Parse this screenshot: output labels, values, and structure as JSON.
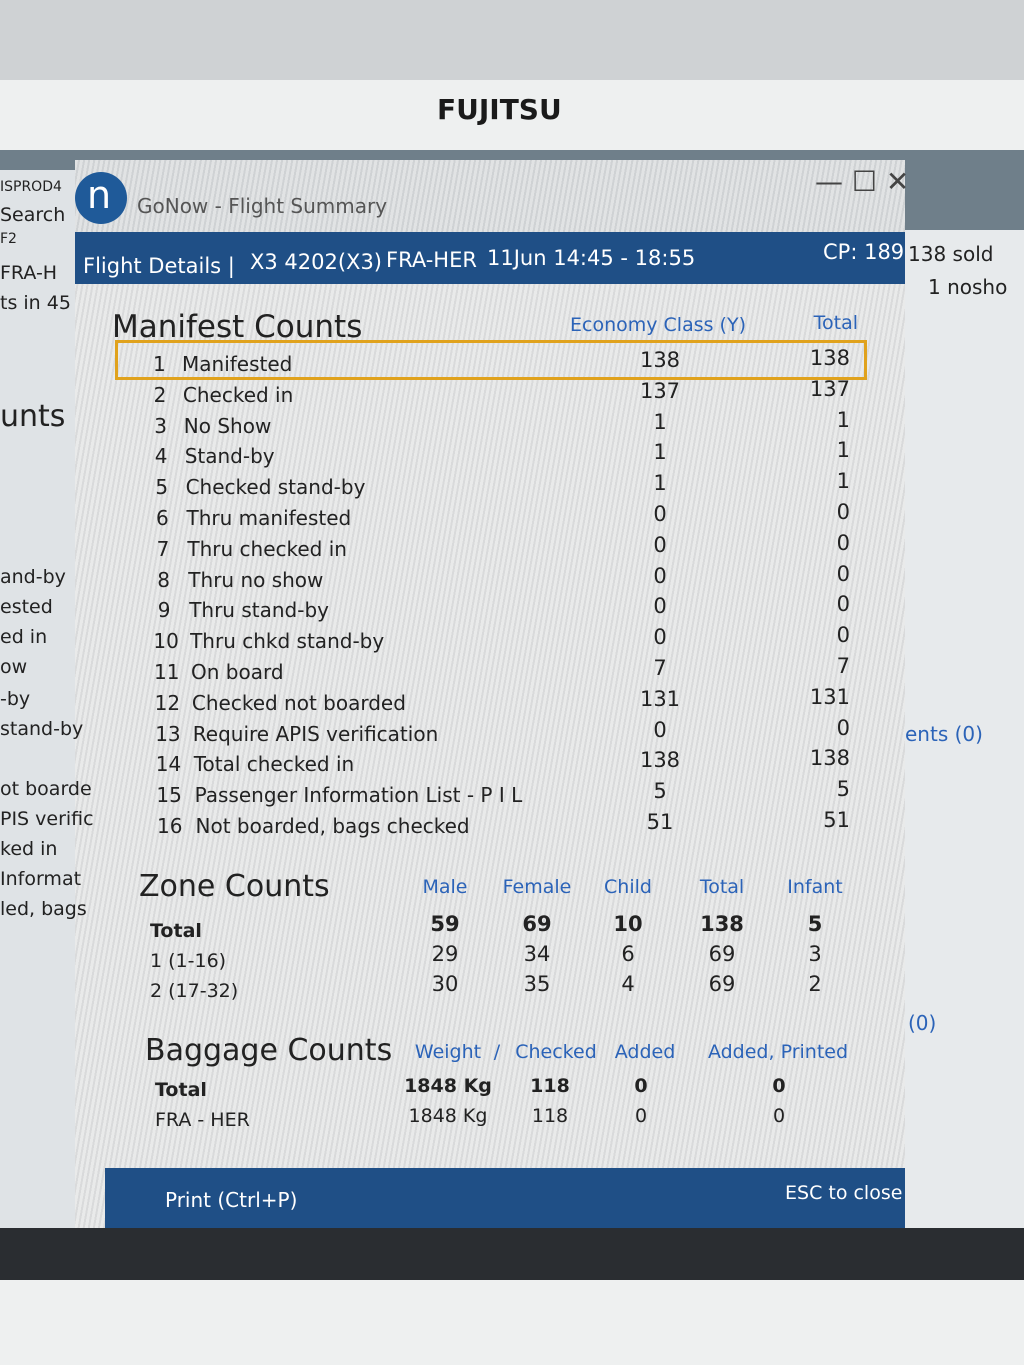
{
  "monitor_brand": "FUJITSU",
  "background_window": {
    "left_labels": [
      "ISPROD4",
      "Search",
      "F2",
      "FRA-H",
      "ts in 45",
      "unts",
      "and-by",
      "ested",
      "ed in",
      "ow",
      "-by",
      "stand-by",
      "ot boarde",
      "PIS verific",
      "ked in",
      "Informat",
      "led, bags"
    ],
    "right_labels": [
      "138 sold",
      "1 nosho",
      "ents (0)",
      "(0)"
    ]
  },
  "window": {
    "app_icon": "n",
    "title": "GoNow - Flight Summary"
  },
  "header": {
    "label": "Flight Details |",
    "flight": "X3 4202(X3)",
    "route": "FRA-HER",
    "date_time": "11Jun 14:45 - 18:55",
    "cp": "CP: 189"
  },
  "manifest": {
    "title": "Manifest Counts",
    "columns": [
      "Economy Class (Y)",
      "Total"
    ],
    "rows": [
      [
        "1",
        "Manifested",
        138,
        138
      ],
      [
        "2",
        "Checked in",
        137,
        137
      ],
      [
        "3",
        "No Show",
        1,
        1
      ],
      [
        "4",
        "Stand-by",
        1,
        1
      ],
      [
        "5",
        "Checked stand-by",
        1,
        1
      ],
      [
        "6",
        "Thru manifested",
        0,
        0
      ],
      [
        "7",
        "Thru checked in",
        0,
        0
      ],
      [
        "8",
        "Thru no show",
        0,
        0
      ],
      [
        "9",
        "Thru stand-by",
        0,
        0
      ],
      [
        "10",
        "Thru chkd stand-by",
        0,
        0
      ],
      [
        "11",
        "On board",
        7,
        7
      ],
      [
        "12",
        "Checked not boarded",
        131,
        131
      ],
      [
        "13",
        "Require APIS verification",
        0,
        0
      ],
      [
        "14",
        "Total checked in",
        138,
        138
      ],
      [
        "15",
        "Passenger Information List - P I L",
        5,
        5
      ],
      [
        "16",
        "Not boarded, bags checked",
        51,
        51
      ]
    ]
  },
  "zone": {
    "title": "Zone Counts",
    "columns": [
      "Male",
      "Female",
      "Child",
      "Total",
      "Infant"
    ],
    "rows": [
      [
        "Total",
        59,
        69,
        10,
        138,
        5
      ],
      [
        "1 (1-16)",
        29,
        34,
        6,
        69,
        3
      ],
      [
        "2 (17-32)",
        30,
        35,
        4,
        69,
        2
      ]
    ]
  },
  "baggage": {
    "title": "Baggage Counts",
    "columns": [
      "Weight",
      "/",
      "Checked",
      "Added",
      "Added, Printed"
    ],
    "rows": [
      [
        "Total",
        "1848 Kg",
        118,
        0,
        0
      ],
      [
        "FRA - HER",
        "1848 Kg",
        118,
        0,
        0
      ]
    ]
  },
  "footer": {
    "print": "Print (Ctrl+P)",
    "close": "ESC to close"
  }
}
